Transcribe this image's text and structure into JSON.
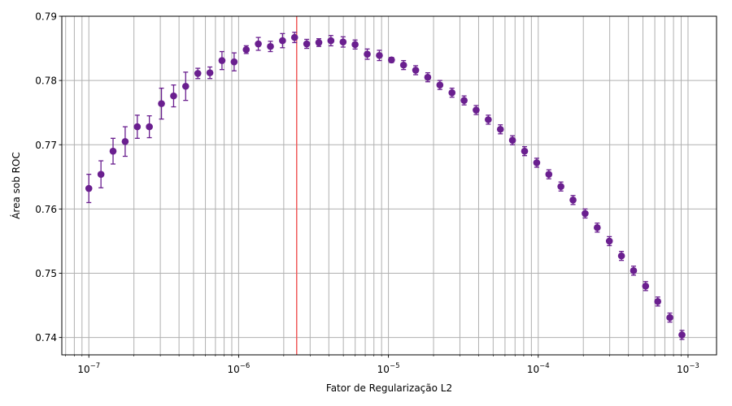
{
  "chart_data": {
    "type": "scatter",
    "xlabel": "Fator de Regularização L2",
    "ylabel": "Área sob ROC",
    "x_scale": "log",
    "xlim": [
      6.6e-08,
      0.00155
    ],
    "ylim": [
      0.7373,
      0.79
    ],
    "x_major_tick_labels": [
      {
        "value": 1e-07,
        "base": "10",
        "exp": "−7"
      },
      {
        "value": 1e-06,
        "base": "10",
        "exp": "−6"
      },
      {
        "value": 1e-05,
        "base": "10",
        "exp": "−5"
      },
      {
        "value": 0.0001,
        "base": "10",
        "exp": "−4"
      },
      {
        "value": 0.001,
        "base": "10",
        "exp": "−3"
      }
    ],
    "y_ticks": [
      0.74,
      0.75,
      0.76,
      0.77,
      0.78,
      0.79
    ],
    "y_tick_labels": [
      "0.74",
      "0.75",
      "0.76",
      "0.77",
      "0.78",
      "0.79"
    ],
    "grid": true,
    "selected_x": 2.44e-06,
    "colors": {
      "marker": "#6a1f8f",
      "selected_line": "#f05b5b",
      "grid": "#b0b0b0",
      "axes": "#000000"
    },
    "series": [
      {
        "x": [
          1e-07,
          1.205e-07,
          1.451e-07,
          1.748e-07,
          2.106e-07,
          2.535e-07,
          3.054e-07,
          3.68e-07,
          4.43e-07,
          5.34e-07,
          6.43e-07,
          7.74e-07,
          9.33e-07,
          1.124e-06,
          1.353e-06,
          1.63e-06,
          1.963e-06,
          2.364e-06,
          2.848e-06,
          3.43e-06,
          4.13e-06,
          4.98e-06,
          5.99e-06,
          7.22e-06,
          8.7e-06,
          1.048e-05,
          1.262e-05,
          1.52e-05,
          1.83e-05,
          2.205e-05,
          2.656e-05,
          3.2e-05,
          3.85e-05,
          4.64e-05,
          5.59e-05,
          6.73e-05,
          8.11e-05,
          9.77e-05,
          0.0001177,
          0.0001417,
          0.0001707,
          0.0002056,
          0.0002477,
          0.0002984,
          0.0003594,
          0.0004329,
          0.000521,
          0.000628,
          0.000756,
          0.000911
        ],
        "y": [
          0.7632,
          0.7654,
          0.769,
          0.7705,
          0.7728,
          0.7728,
          0.7764,
          0.7776,
          0.7791,
          0.7811,
          0.7812,
          0.7831,
          0.7829,
          0.7848,
          0.7857,
          0.7853,
          0.7862,
          0.7867,
          0.7857,
          0.7859,
          0.7862,
          0.786,
          0.7856,
          0.7841,
          0.7839,
          0.7832,
          0.7824,
          0.7816,
          0.7805,
          0.7793,
          0.7781,
          0.7769,
          0.7754,
          0.7739,
          0.7724,
          0.7707,
          0.769,
          0.7672,
          0.7654,
          0.7635,
          0.7614,
          0.7593,
          0.7571,
          0.755,
          0.7527,
          0.7504,
          0.748,
          0.7456,
          0.7431,
          0.7404
        ],
        "err": [
          0.0022,
          0.0021,
          0.002,
          0.0023,
          0.0018,
          0.0017,
          0.0024,
          0.0017,
          0.0022,
          0.0008,
          0.0009,
          0.0014,
          0.0014,
          0.0006,
          0.001,
          0.0008,
          0.0011,
          0.0008,
          0.0007,
          0.0006,
          0.0008,
          0.0008,
          0.0007,
          0.0008,
          0.0008,
          0.0004,
          0.0007,
          0.0007,
          0.0007,
          0.0007,
          0.0007,
          0.0007,
          0.0007,
          0.0007,
          0.0007,
          0.0007,
          0.0007,
          0.0007,
          0.0007,
          0.0007,
          0.0007,
          0.0007,
          0.0007,
          0.0007,
          0.0007,
          0.0007,
          0.0007,
          0.0007,
          0.0007,
          0.0007
        ]
      }
    ]
  }
}
